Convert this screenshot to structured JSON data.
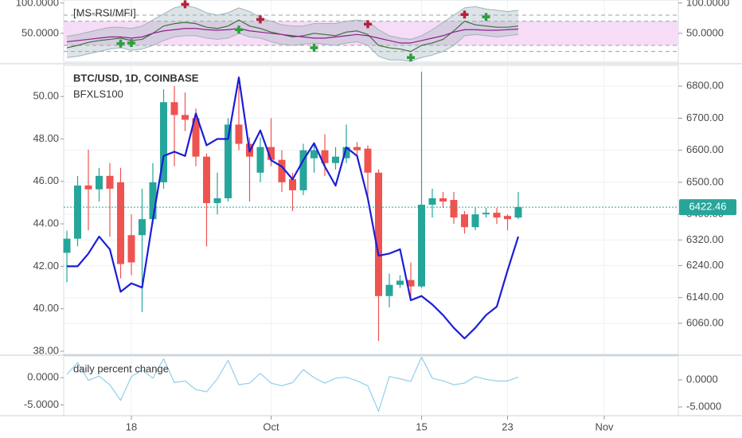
{
  "chart_data": [
    {
      "type": "line",
      "title": "[MS-RSI/MFI]",
      "ylim": [
        2.4,
        105
      ],
      "yticks": [
        {
          "value": 100,
          "label": "100.0000"
        },
        {
          "value": 50,
          "label": "50.0000"
        }
      ],
      "y2lim": [
        2.4,
        105
      ],
      "y2ticks": [
        {
          "value": 100,
          "label": "100.0000"
        },
        {
          "value": 50,
          "label": "50.0000"
        }
      ],
      "zone": {
        "range": [
          30,
          70
        ],
        "color": "#f6dcf6"
      },
      "levels": [
        20,
        30,
        70,
        80
      ],
      "band": {
        "color": "#9fb3ba",
        "upper": [
          45,
          48,
          52,
          56,
          60,
          60,
          58,
          62,
          72,
          82,
          92,
          96,
          92,
          84,
          80,
          84,
          92,
          86,
          76,
          70,
          64,
          62,
          62,
          66,
          66,
          66,
          70,
          72,
          70,
          56,
          46,
          42,
          40,
          46,
          56,
          68,
          80,
          92,
          94,
          90,
          88,
          86,
          88,
          null,
          null,
          null,
          null,
          null,
          null,
          null,
          null,
          null,
          null,
          null,
          null,
          null,
          null
        ],
        "lower": [
          10,
          12,
          16,
          20,
          24,
          26,
          22,
          24,
          30,
          38,
          44,
          46,
          46,
          42,
          40,
          42,
          50,
          44,
          42,
          36,
          32,
          30,
          32,
          34,
          32,
          30,
          34,
          36,
          30,
          12,
          6,
          6,
          4,
          10,
          14,
          20,
          30,
          46,
          48,
          46,
          44,
          46,
          48,
          null,
          null,
          null,
          null,
          null,
          null,
          null,
          null,
          null,
          null,
          null,
          null,
          null,
          null
        ]
      },
      "series": [
        {
          "color": "#3f6f3f",
          "values": [
            26,
            30,
            35,
            38,
            40,
            42,
            38,
            40,
            50,
            62,
            66,
            68,
            66,
            60,
            58,
            62,
            72,
            62,
            58,
            52,
            48,
            44,
            46,
            50,
            48,
            46,
            52,
            54,
            48,
            30,
            26,
            24,
            20,
            30,
            34,
            40,
            54,
            70,
            64,
            62,
            60,
            60,
            62,
            null,
            null,
            null,
            null,
            null,
            null,
            null,
            null,
            null,
            null,
            null,
            null,
            null,
            null
          ]
        },
        {
          "color": "#8e1f8e",
          "values": [
            36,
            38,
            40,
            42,
            44,
            44,
            42,
            44,
            50,
            54,
            56,
            58,
            58,
            56,
            55,
            56,
            58,
            54,
            52,
            50,
            48,
            46,
            44,
            42,
            42,
            44,
            46,
            48,
            46,
            42,
            38,
            34,
            34,
            38,
            42,
            46,
            52,
            56,
            56,
            55,
            55,
            56,
            57,
            null,
            null,
            null,
            null,
            null,
            null,
            null,
            null,
            null,
            null,
            null,
            null,
            null,
            null
          ]
        }
      ],
      "markers": {
        "buy": {
          "color": "#2e9e3e",
          "values": [
            null,
            null,
            null,
            null,
            null,
            33,
            34,
            null,
            null,
            null,
            null,
            null,
            null,
            null,
            null,
            null,
            56,
            null,
            null,
            null,
            null,
            null,
            null,
            26,
            null,
            null,
            null,
            null,
            null,
            null,
            null,
            null,
            10,
            null,
            null,
            null,
            null,
            null,
            null,
            77,
            null,
            null,
            null,
            null,
            null,
            null,
            null,
            null,
            null,
            null,
            null,
            null,
            null,
            null,
            null,
            null,
            null
          ]
        },
        "sell": {
          "color": "#b5233a",
          "values": [
            null,
            null,
            null,
            null,
            null,
            null,
            null,
            null,
            null,
            null,
            null,
            98,
            null,
            null,
            null,
            null,
            null,
            null,
            73,
            null,
            null,
            null,
            null,
            null,
            null,
            null,
            null,
            null,
            65,
            null,
            null,
            null,
            null,
            null,
            null,
            null,
            null,
            81,
            null,
            null,
            null,
            null,
            null,
            null,
            null,
            null,
            null,
            null,
            null,
            null,
            null,
            null,
            null,
            null,
            null,
            null,
            null
          ]
        }
      }
    },
    {
      "type": "candlestick",
      "title": "BTC/USD, 1D, COINBASE",
      "categories": [
        null,
        null,
        null,
        null,
        null,
        null,
        "18",
        null,
        null,
        null,
        null,
        null,
        null,
        null,
        null,
        null,
        null,
        null,
        null,
        "Oct",
        null,
        null,
        null,
        null,
        null,
        null,
        null,
        null,
        null,
        null,
        null,
        null,
        null,
        "15",
        null,
        null,
        null,
        null,
        null,
        null,
        null,
        "23",
        null,
        null,
        null,
        null,
        null,
        null,
        null,
        null,
        "Nov",
        null,
        null,
        null,
        null,
        null,
        null
      ],
      "open": [
        6280,
        6324,
        6490,
        6478,
        6520,
        6500,
        6335,
        6335,
        6385,
        6500,
        6750,
        6710,
        6700,
        6580,
        6435,
        6450,
        6680,
        6620,
        6530,
        6610,
        6570,
        6510,
        6475,
        6575,
        6600,
        6560,
        6575,
        6610,
        6605,
        6530,
        6145,
        6180,
        6195,
        6175,
        6430,
        6450,
        6445,
        6400,
        6360,
        6400,
        6405,
        6395,
        6390,
        null,
        null,
        null,
        null,
        null,
        null,
        null,
        null,
        null,
        null,
        null,
        null,
        null,
        null
      ],
      "high": [
        6349,
        6520,
        6602,
        6545,
        6560,
        6545,
        6400,
        6480,
        6560,
        6790,
        6800,
        6780,
        6730,
        6590,
        6530,
        6700,
        6800,
        6640,
        6640,
        6700,
        6600,
        6530,
        6620,
        6620,
        6650,
        6610,
        6680,
        6625,
        6615,
        6540,
        6215,
        6210,
        6250,
        6845,
        6480,
        6470,
        6470,
        6410,
        6420,
        6420,
        6420,
        6400,
        6470,
        null,
        null,
        null,
        null,
        null,
        null,
        null,
        null,
        null,
        null,
        null,
        null,
        null,
        null
      ],
      "low": [
        6188,
        6300,
        6350,
        6440,
        6330,
        6200,
        6210,
        6095,
        6370,
        6480,
        6550,
        6660,
        6550,
        6300,
        6400,
        6440,
        6600,
        6440,
        6500,
        6550,
        6470,
        6410,
        6460,
        6530,
        6520,
        6540,
        6560,
        6580,
        6440,
        6005,
        6110,
        6170,
        6140,
        6170,
        6390,
        6420,
        6370,
        6340,
        6350,
        6390,
        6370,
        6350,
        6385,
        null,
        null,
        null,
        null,
        null,
        null,
        null,
        null,
        null,
        null,
        null,
        null,
        null,
        null
      ],
      "close": [
        6324,
        6490,
        6478,
        6520,
        6480,
        6245,
        6250,
        6385,
        6500,
        6750,
        6710,
        6695,
        6580,
        6435,
        6450,
        6680,
        6620,
        6580,
        6610,
        6570,
        6500,
        6475,
        6600,
        6600,
        6560,
        6580,
        6610,
        6600,
        6530,
        6145,
        6180,
        6193,
        6175,
        6430,
        6450,
        6440,
        6390,
        6360,
        6400,
        6405,
        6390,
        6385,
        6422.46,
        null,
        null,
        null,
        null,
        null,
        null,
        null,
        null,
        null,
        null,
        null,
        null,
        null,
        null
      ],
      "up_color": "#26a69a",
      "down_color": "#ef5350",
      "last_price_color": "#26a69a",
      "ylim": [
        5963,
        6865
      ],
      "yticks": [
        {
          "value": 6800,
          "label": "6800.00"
        },
        {
          "value": 6700,
          "label": "6700.00"
        },
        {
          "value": 6600,
          "label": "6600.00"
        },
        {
          "value": 6500,
          "label": "6500.00"
        },
        {
          "value": 6400,
          "label": "6400.00"
        },
        {
          "value": 6320,
          "label": "6320.00"
        },
        {
          "value": 6240,
          "label": "6240.00"
        },
        {
          "value": 6140,
          "label": "6140.00"
        },
        {
          "value": 6060,
          "label": "6060.00"
        }
      ],
      "y2lim": [
        37.85,
        51.47
      ],
      "y2ticks": [
        {
          "value": 50,
          "label": "50.00"
        },
        {
          "value": 48,
          "label": "48.00"
        },
        {
          "value": 46,
          "label": "46.00"
        },
        {
          "value": 44,
          "label": "44.00"
        },
        {
          "value": 42,
          "label": "42.00"
        },
        {
          "value": 40,
          "label": "40.00"
        },
        {
          "value": 38,
          "label": "38.00"
        }
      ],
      "grid": true,
      "series": [
        {
          "name": "BFXLS100",
          "color": "#1c1cd8",
          "axis": "y2",
          "values": [
            42.0,
            42.0,
            42.6,
            43.4,
            42.8,
            40.8,
            41.2,
            41.0,
            44.2,
            47.2,
            47.4,
            47.2,
            49.2,
            47.7,
            48.0,
            48.0,
            50.9,
            47.4,
            48.4,
            47.0,
            46.7,
            46.1,
            47.0,
            47.8,
            46.7,
            45.8,
            47.6,
            47.2,
            45.2,
            42.5,
            42.6,
            42.8,
            40.4,
            40.6,
            40.2,
            39.7,
            39.1,
            38.6,
            39.1,
            39.7,
            40.1,
            41.8,
            43.4,
            null,
            null,
            null,
            null,
            null,
            null,
            null,
            null,
            null,
            null,
            null,
            null,
            null,
            null
          ]
        }
      ]
    },
    {
      "type": "line",
      "title": "daily percent change",
      "ylim": [
        -6.62,
        4.41
      ],
      "yticks": [
        {
          "value": 0,
          "label": "0.0000"
        },
        {
          "value": -5,
          "label": "-5.0000"
        }
      ],
      "y2lim": [
        -7.0,
        4.0
      ],
      "y2ticks": [
        {
          "value": 0,
          "label": "0.0000"
        },
        {
          "value": -5,
          "label": "-5.0000"
        }
      ],
      "series": [
        {
          "color": "#8fd0ea",
          "values": [
            1.0,
            3.2,
            -0.1,
            0.7,
            -0.9,
            -3.8,
            0.6,
            1.8,
            0.3,
            3.9,
            -0.5,
            -0.2,
            -1.8,
            -2.2,
            0.2,
            3.6,
            -0.9,
            -0.6,
            1.2,
            -0.6,
            -1.1,
            -0.5,
            1.9,
            0.4,
            -0.6,
            0.3,
            0.5,
            -0.2,
            -1.1,
            -5.8,
            0.6,
            0.2,
            -0.3,
            4.2,
            0.3,
            -0.2,
            -0.9,
            -0.6,
            0.6,
            0.1,
            -0.2,
            -0.2,
            0.5,
            null,
            null,
            null,
            null,
            null,
            null,
            null,
            null,
            null,
            null,
            null,
            null,
            null,
            null
          ]
        }
      ]
    }
  ]
}
